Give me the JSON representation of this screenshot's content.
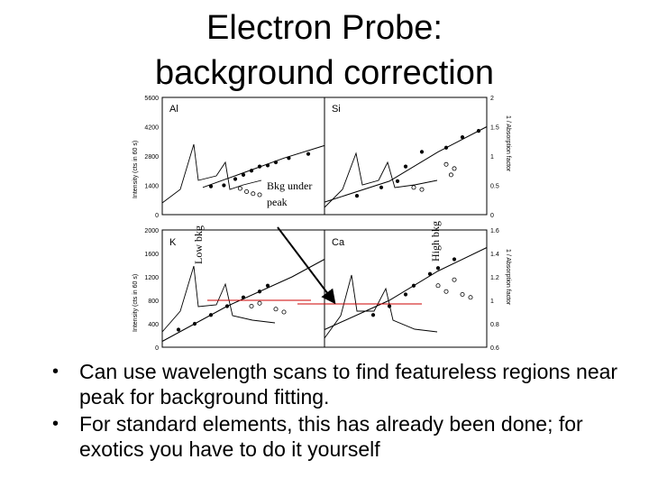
{
  "title": {
    "line1": "Electron Probe:",
    "line2": "background correction"
  },
  "bullets": [
    "Can use wavelength scans to find featureless regions near peak for background fitting.",
    "For standard elements, this has already been done; for exotics you have to do it yourself"
  ],
  "annotations": {
    "bkg_under_peak_line1": "Bkg under",
    "bkg_under_peak_line2": "peak",
    "low_bkg": "Low bkg",
    "high_bkg": "High bkg"
  },
  "chart_data": [
    {
      "type": "scatter",
      "panel_label": "Al",
      "ylabel": "Intensity (cts in 60 s)",
      "yticks": [
        0,
        1400,
        2800,
        4200,
        5600
      ],
      "ylim": [
        0,
        5600
      ],
      "points_filled": [
        [
          0.3,
          1350
        ],
        [
          0.38,
          1400
        ],
        [
          0.45,
          1700
        ],
        [
          0.5,
          1900
        ],
        [
          0.55,
          2100
        ],
        [
          0.6,
          2300
        ],
        [
          0.65,
          2350
        ],
        [
          0.7,
          2500
        ],
        [
          0.78,
          2700
        ],
        [
          0.9,
          2900
        ]
      ],
      "points_open": [
        [
          0.52,
          1100
        ],
        [
          0.56,
          1000
        ],
        [
          0.6,
          950
        ],
        [
          0.48,
          1250
        ]
      ],
      "curve_trend": [
        [
          0.25,
          1300
        ],
        [
          0.5,
          2000
        ],
        [
          0.75,
          2700
        ],
        [
          1.0,
          3300
        ]
      ]
    },
    {
      "type": "scatter",
      "panel_label": "Si",
      "y2label": "1 / Absorption factor",
      "y2ticks": [
        "0",
        "0.5",
        "1",
        "1.5",
        "2"
      ],
      "points_filled": [
        [
          0.2,
          900
        ],
        [
          0.35,
          1300
        ],
        [
          0.45,
          1600
        ],
        [
          0.5,
          2300
        ],
        [
          0.6,
          3000
        ],
        [
          0.75,
          3200
        ],
        [
          0.85,
          3700
        ],
        [
          0.95,
          4000
        ]
      ],
      "points_open": [
        [
          0.55,
          1300
        ],
        [
          0.6,
          1200
        ],
        [
          0.75,
          2400
        ],
        [
          0.8,
          2200
        ],
        [
          0.78,
          1900
        ]
      ],
      "curve_trend": [
        [
          0.0,
          600
        ],
        [
          0.4,
          1600
        ],
        [
          0.7,
          3000
        ],
        [
          1.0,
          4200
        ]
      ]
    },
    {
      "type": "scatter",
      "panel_label": "K",
      "ylabel": "Intensity (cts in 60 s)",
      "yticks": [
        0,
        400,
        800,
        1200,
        1600,
        2000
      ],
      "ylim": [
        0,
        2000
      ],
      "points_filled": [
        [
          0.1,
          300
        ],
        [
          0.2,
          400
        ],
        [
          0.3,
          550
        ],
        [
          0.4,
          700
        ],
        [
          0.5,
          850
        ],
        [
          0.6,
          950
        ],
        [
          0.65,
          1050
        ]
      ],
      "points_open": [
        [
          0.55,
          700
        ],
        [
          0.6,
          750
        ],
        [
          0.7,
          650
        ],
        [
          0.75,
          600
        ]
      ],
      "curve_trend": [
        [
          0.0,
          100
        ],
        [
          0.4,
          700
        ],
        [
          0.8,
          1200
        ],
        [
          1.0,
          1500
        ]
      ]
    },
    {
      "type": "scatter",
      "panel_label": "Ca",
      "y2label": "1 / Absorption factor",
      "y2ticks": [
        "0.6",
        "0.8",
        "1",
        "1.2",
        "1.4",
        "1.6"
      ],
      "points_filled": [
        [
          0.3,
          550
        ],
        [
          0.4,
          700
        ],
        [
          0.5,
          900
        ],
        [
          0.55,
          1050
        ],
        [
          0.65,
          1250
        ],
        [
          0.7,
          1350
        ],
        [
          0.8,
          1500
        ]
      ],
      "points_open": [
        [
          0.7,
          1050
        ],
        [
          0.75,
          950
        ],
        [
          0.85,
          900
        ],
        [
          0.9,
          850
        ],
        [
          0.8,
          1150
        ]
      ],
      "curve_trend": [
        [
          0.0,
          300
        ],
        [
          0.4,
          800
        ],
        [
          0.7,
          1300
        ],
        [
          1.0,
          1700
        ]
      ]
    }
  ]
}
